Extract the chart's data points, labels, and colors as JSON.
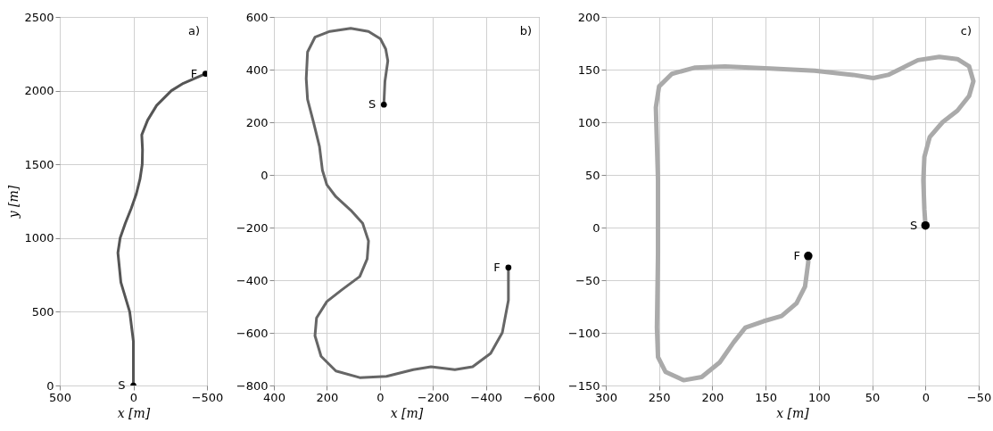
{
  "chart_data": [
    {
      "type": "line",
      "ylabel": "y [m]",
      "xlabel": "x [m]",
      "xlim": [
        500,
        -500
      ],
      "xticks": [
        500,
        0,
        -500
      ],
      "ylim": [
        0,
        2500
      ],
      "yticks": [
        0,
        500,
        1000,
        1500,
        2000,
        2500
      ],
      "grid": true,
      "series": [
        {
          "color": "#555555",
          "x": [
            0,
            0,
            25,
            85,
            105,
            90,
            55,
            15,
            -20,
            -45,
            -60,
            -62,
            -57,
            -97,
            -158,
            -258,
            -340,
            -490
          ],
          "values": [
            0,
            300,
            500,
            700,
            900,
            1000,
            1100,
            1200,
            1300,
            1400,
            1500,
            1600,
            1700,
            1800,
            1900,
            2000,
            2050,
            2115
          ]
        },
        {
          "type": "scatter",
          "color": "#000000",
          "x": [
            0,
            -490
          ],
          "values": [
            0,
            2115
          ],
          "value_labels": [
            "S",
            "F"
          ]
        }
      ],
      "annotations": [
        "a)"
      ]
    },
    {
      "type": "line",
      "xlabel": "x [m]",
      "xlim": [
        400,
        -600
      ],
      "xticks": [
        400,
        200,
        0,
        -200,
        -400,
        -600
      ],
      "ylim": [
        -800,
        600
      ],
      "yticks": [
        -800,
        -600,
        -400,
        -200,
        0,
        200,
        400,
        600
      ],
      "grid": true,
      "series": [
        {
          "color": "#666666",
          "x": [
            -15,
            -19,
            -30,
            -22,
            -2,
            43,
            110,
            189,
            245,
            273,
            278,
            273,
            250,
            228,
            217,
            200,
            166,
            110,
            65,
            43,
            48,
            76,
            144,
            200,
            239,
            245,
            222,
            166,
            76,
            -25,
            -126,
            -193,
            -283,
            -350,
            -418,
            -462,
            -485,
            -485
          ],
          "values": [
            267,
            355,
            433,
            478,
            517,
            545,
            557,
            545,
            523,
            467,
            366,
            287,
            198,
            108,
            18,
            -38,
            -83,
            -134,
            -184,
            -251,
            -319,
            -386,
            -437,
            -481,
            -543,
            -611,
            -689,
            -745,
            -770,
            -765,
            -740,
            -729,
            -740,
            -729,
            -678,
            -599,
            -476,
            -352
          ]
        },
        {
          "type": "scatter",
          "color": "#000000",
          "x": [
            -15,
            -485
          ],
          "values": [
            267,
            -352
          ],
          "value_labels": [
            "S",
            "F"
          ]
        }
      ],
      "annotations": [
        "b)"
      ]
    },
    {
      "type": "line",
      "xlabel": "x [m]",
      "xlim": [
        300,
        -50
      ],
      "xticks": [
        300,
        250,
        200,
        150,
        100,
        50,
        0,
        -50
      ],
      "ylim": [
        -150,
        200
      ],
      "yticks": [
        -150,
        -100,
        -50,
        0,
        50,
        100,
        150,
        200
      ],
      "grid": true,
      "series": [
        {
          "color": "#aaaaaa",
          "x": [
            0,
            1,
            2,
            1,
            -4,
            -16,
            -30,
            -41,
            -45,
            -41,
            -30,
            -13,
            7,
            21,
            35,
            49,
            68,
            104,
            146,
            188,
            216,
            238,
            250,
            253,
            251,
            251,
            252,
            251,
            244,
            227,
            210,
            193,
            180,
            169,
            152,
            135,
            121,
            113,
            110,
            110
          ],
          "values": [
            2,
            17,
            45,
            67,
            86,
            100,
            111,
            125,
            139,
            153,
            160,
            162,
            159,
            152,
            145,
            142,
            145,
            149,
            151,
            153,
            152,
            146,
            134,
            114,
            45,
            -25,
            -95,
            -123,
            -137,
            -145,
            -142,
            -128,
            -109,
            -95,
            -89,
            -84,
            -72,
            -56,
            -33,
            -27
          ]
        },
        {
          "type": "scatter",
          "color": "#000000",
          "x": [
            0,
            110
          ],
          "values": [
            2,
            -27
          ],
          "value_labels": [
            "S",
            "F"
          ]
        }
      ],
      "annotations": [
        "c)"
      ]
    }
  ]
}
